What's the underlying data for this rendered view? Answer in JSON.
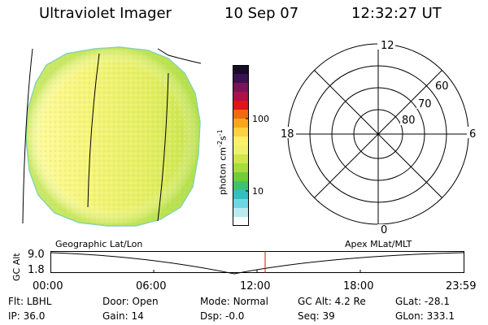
{
  "header": {
    "instrument": "Ultraviolet Imager",
    "date": "10 Sep 07",
    "time": "12:32:27 UT"
  },
  "colorbar": {
    "label_main": "photon cm",
    "label_exp1": "-2",
    "label_mid": "s",
    "label_exp2": "-1",
    "tick_high": "100",
    "tick_low": "10",
    "colors": [
      "#1a0a2a",
      "#3a1250",
      "#7a1458",
      "#b0104a",
      "#e01418",
      "#f26a10",
      "#f7a81a",
      "#ffd040",
      "#fff06a",
      "#eef26a",
      "#cfe64a",
      "#a8dc3a",
      "#70cc3a",
      "#3ec270",
      "#30c0c0",
      "#70d6e6",
      "#b8ecf2",
      "#ffffff"
    ]
  },
  "polar": {
    "mlt_labels": {
      "top": "12",
      "bottom": "0",
      "left": "18",
      "right": "6"
    },
    "lat_labels": [
      "60",
      "70",
      "80"
    ]
  },
  "track": {
    "left_caption": "Geographic Lat/Lon",
    "right_caption": "Apex MLat/MLT",
    "yaxis_label": "GC Alt",
    "y_ticks": [
      "9.0",
      "1.8"
    ],
    "x_ticks": [
      "00:00",
      "06:00",
      "12:00",
      "18:00",
      "23:59"
    ],
    "marker_color": "#d01010"
  },
  "info_rows": [
    [
      {
        "label": "Flt:",
        "value": "LBHL"
      },
      {
        "label": "Door:",
        "value": "Open"
      },
      {
        "label": "Mode:",
        "value": "Normal"
      },
      {
        "label": "GC Alt:",
        "value": "4.2 Re"
      },
      {
        "label": "GLat:",
        "value": "-28.1"
      }
    ],
    [
      {
        "label": "IP:",
        "value": "36.0"
      },
      {
        "label": "Gain:",
        "value": "14"
      },
      {
        "label": "Dsp:",
        "value": "-0.0"
      },
      {
        "label": "Seq:",
        "value": "39"
      },
      {
        "label": "GLon:",
        "value": "333.1"
      }
    ]
  ]
}
